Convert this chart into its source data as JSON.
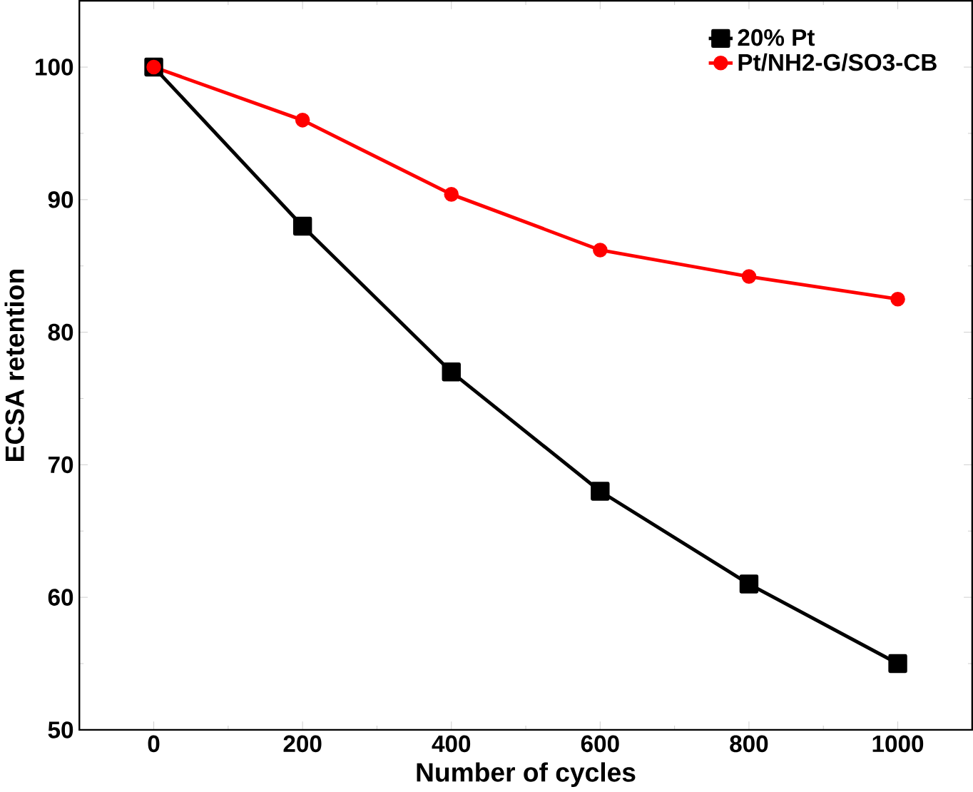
{
  "chart_data": {
    "type": "line",
    "xlabel": "Number of cycles",
    "ylabel": "ECSA retention",
    "x": [
      0,
      200,
      400,
      600,
      800,
      1000
    ],
    "series": [
      {
        "name": "20% Pt",
        "color": "#000000",
        "marker": "square",
        "values": [
          100,
          88,
          77,
          68,
          61,
          55
        ]
      },
      {
        "name": "Pt/NH2-G/SO3-CB",
        "color": "#ff0000",
        "marker": "circle",
        "values": [
          100,
          96,
          90.4,
          86.2,
          84.2,
          82.5
        ]
      }
    ],
    "xlim": [
      -100,
      1100
    ],
    "ylim": [
      50,
      105
    ],
    "xticks": [
      0,
      200,
      400,
      600,
      800,
      1000
    ],
    "yticks": [
      50,
      60,
      70,
      80,
      90,
      100
    ],
    "legend": "top right",
    "grid": false,
    "line_style": "solid"
  }
}
